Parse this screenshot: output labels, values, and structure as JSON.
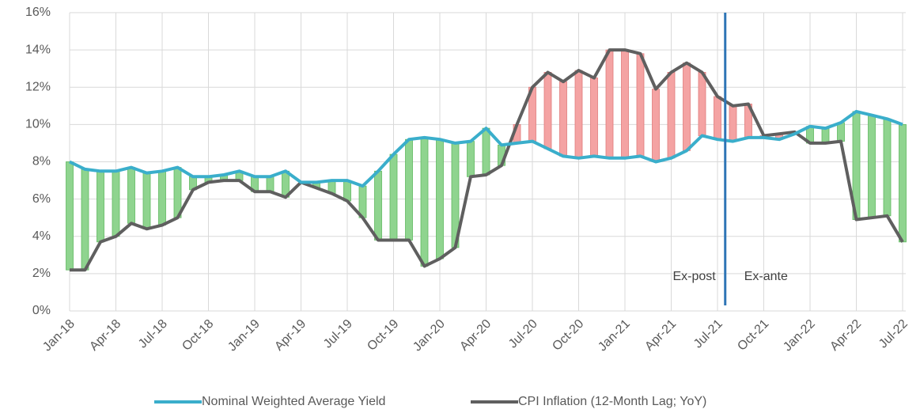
{
  "chart_data": {
    "type": "line",
    "categories": [
      "Jan-18",
      null,
      null,
      "Apr-18",
      null,
      null,
      "Jul-18",
      null,
      null,
      "Oct-18",
      null,
      null,
      "Jan-19",
      null,
      null,
      "Apr-19",
      null,
      null,
      "Jul-19",
      null,
      null,
      "Oct-19",
      null,
      null,
      "Jan-20",
      null,
      null,
      "Apr-20",
      null,
      null,
      "Jul-20",
      null,
      null,
      "Oct-20",
      null,
      null,
      "Jan-21",
      null,
      null,
      "Apr-21",
      null,
      null,
      "Jul-21",
      null,
      null,
      "Oct-21",
      null,
      null,
      "Jan-22",
      null,
      null,
      "Apr-22",
      null,
      null,
      "Jul-22"
    ],
    "series": [
      {
        "name": "Nominal Weighted Average Yield",
        "color": "#3aaecb",
        "values": [
          8.0,
          7.6,
          7.5,
          7.5,
          7.7,
          7.4,
          7.5,
          7.7,
          7.2,
          7.2,
          7.3,
          7.5,
          7.2,
          7.2,
          7.5,
          6.9,
          6.9,
          7.0,
          7.0,
          6.7,
          7.5,
          8.4,
          9.2,
          9.3,
          9.2,
          9.0,
          9.1,
          9.8,
          8.9,
          9.0,
          9.1,
          8.7,
          8.3,
          8.2,
          8.3,
          8.2,
          8.2,
          8.3,
          8.0,
          8.2,
          8.6,
          9.4,
          9.2,
          9.1,
          9.3,
          9.3,
          9.2,
          9.5,
          9.9,
          9.8,
          10.1,
          10.7,
          10.5,
          10.3,
          10.0
        ]
      },
      {
        "name": "CPI Inflation (12-Month Lag; YoY)",
        "color": "#5f5f5f",
        "values": [
          2.2,
          2.2,
          3.7,
          4.0,
          4.7,
          4.4,
          4.6,
          5.0,
          6.5,
          6.9,
          7.0,
          7.0,
          6.4,
          6.4,
          6.1,
          6.9,
          6.6,
          6.3,
          5.9,
          5.0,
          3.8,
          3.8,
          3.8,
          2.4,
          2.8,
          3.4,
          7.2,
          7.3,
          7.8,
          10.0,
          12.0,
          12.8,
          12.3,
          12.9,
          12.5,
          14.0,
          14.0,
          13.8,
          11.9,
          12.8,
          13.3,
          12.8,
          11.5,
          11.0,
          11.1,
          9.4,
          9.5,
          9.6,
          9.0,
          9.0,
          9.1,
          4.9,
          5.0,
          5.1,
          3.7
        ]
      }
    ],
    "positive_color": "#8fd48f",
    "negative_color": "#f4a3a3",
    "ylim": [
      0,
      16
    ],
    "yticks": [
      {
        "value": 0,
        "label": "0%"
      },
      {
        "value": 2,
        "label": "2%"
      },
      {
        "value": 4,
        "label": "4%"
      },
      {
        "value": 6,
        "label": "6%"
      },
      {
        "value": 8,
        "label": "8%"
      },
      {
        "value": 10,
        "label": "10%"
      },
      {
        "value": 12,
        "label": "12%"
      },
      {
        "value": 14,
        "label": "14%"
      },
      {
        "value": 16,
        "label": "16%"
      }
    ],
    "annotations": [
      "Ex-post",
      "Ex-ante"
    ],
    "grid": true,
    "legend": "bottom"
  }
}
